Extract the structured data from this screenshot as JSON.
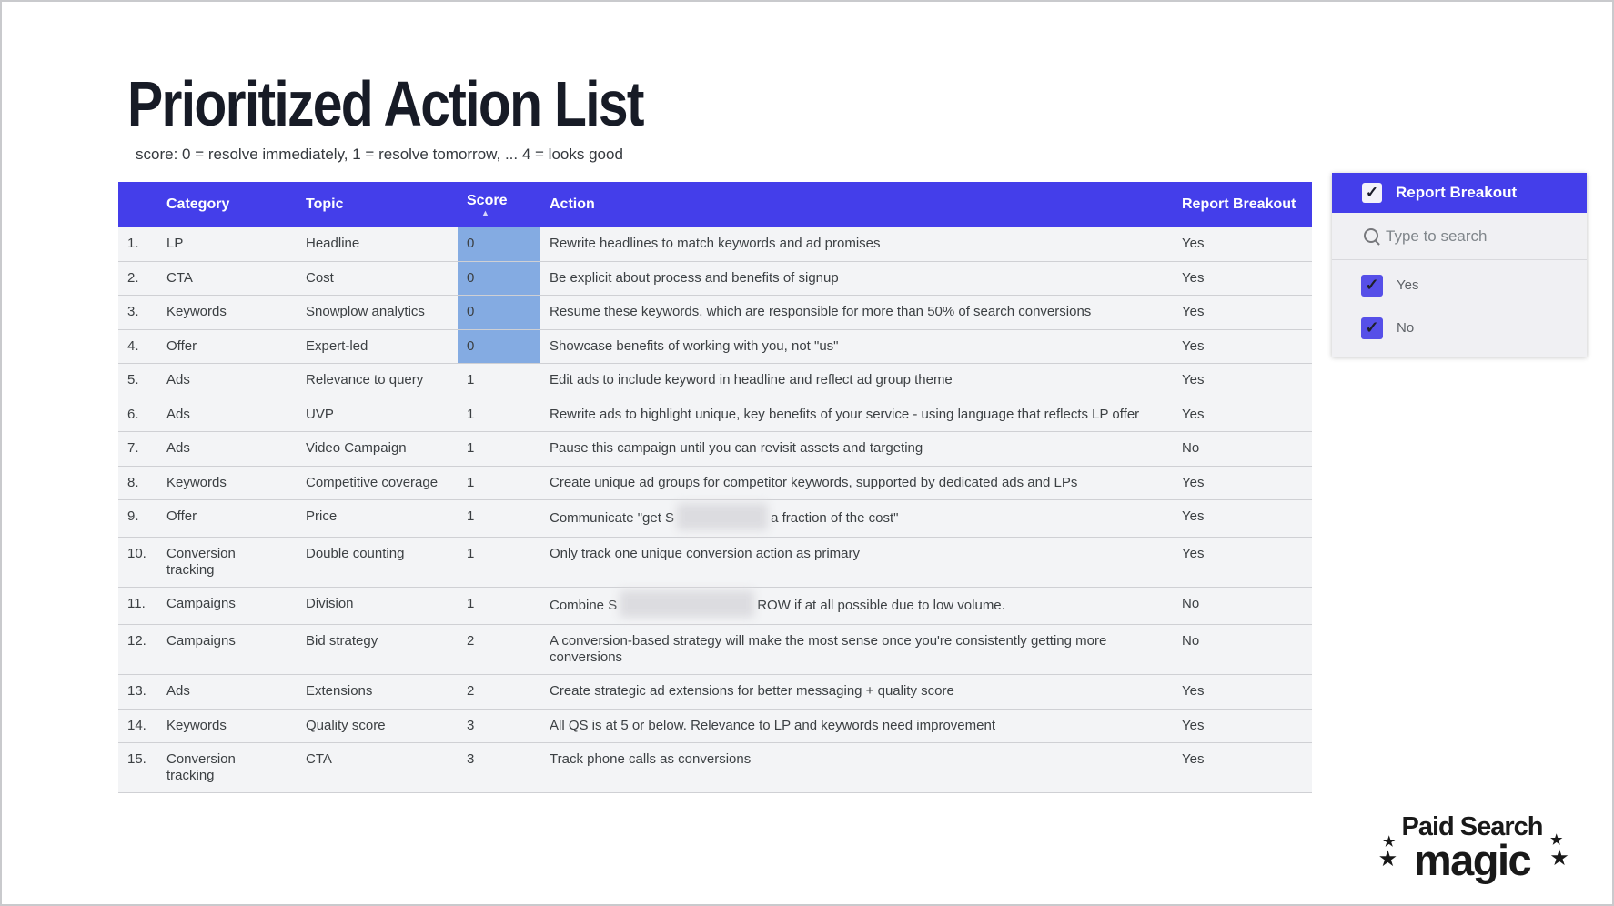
{
  "page": {
    "title": "Prioritized Action List",
    "subtitle": "score: 0 = resolve immediately, 1 = resolve tomorrow, ... 4 = looks good"
  },
  "colors": {
    "accent_blue": "#443eea",
    "score_highlight_blue": "#84abe2",
    "checkbox_blue": "#564fe8",
    "table_background": "#f3f4f6",
    "text_dark": "#3c4043"
  },
  "icons": {
    "sort_asc": "▲",
    "checkmark": "✓",
    "star": "★",
    "search": "magnifier"
  },
  "table": {
    "columns": [
      "Category",
      "Topic",
      "Score",
      "Action",
      "Report Breakout"
    ],
    "sorted_by": "Score",
    "sort_direction": "ascending",
    "rows": [
      {
        "num": "1.",
        "category": "LP",
        "topic": "Headline",
        "score": "0",
        "highlight": true,
        "action": "Rewrite headlines to match keywords and ad promises",
        "breakout": "Yes"
      },
      {
        "num": "2.",
        "category": "CTA",
        "topic": "Cost",
        "score": "0",
        "highlight": true,
        "action": "Be explicit about process and benefits of signup",
        "breakout": "Yes"
      },
      {
        "num": "3.",
        "category": "Keywords",
        "topic": "Snowplow analytics",
        "score": "0",
        "highlight": true,
        "action": "Resume these keywords, which are responsible for more than 50% of search conversions",
        "breakout": "Yes"
      },
      {
        "num": "4.",
        "category": "Offer",
        "topic": "Expert-led",
        "score": "0",
        "highlight": true,
        "action": "Showcase benefits of working with you, not \"us\"",
        "breakout": "Yes"
      },
      {
        "num": "5.",
        "category": "Ads",
        "topic": "Relevance to query",
        "score": "1",
        "action": "Edit ads to include keyword in headline and reflect ad group theme",
        "breakout": "Yes"
      },
      {
        "num": "6.",
        "category": "Ads",
        "topic": "UVP",
        "score": "1",
        "action": "Rewrite ads to highlight unique, key benefits of your service - using language that reflects LP offer",
        "breakout": "Yes"
      },
      {
        "num": "7.",
        "category": "Ads",
        "topic": "Video Campaign",
        "score": "1",
        "action": "Pause this campaign until you can revisit assets and targeting",
        "breakout": "No"
      },
      {
        "num": "8.",
        "category": "Keywords",
        "topic": "Competitive coverage",
        "score": "1",
        "action": "Create unique ad groups for competitor keywords, supported by dedicated ads and LPs",
        "breakout": "Yes"
      },
      {
        "num": "9.",
        "category": "Offer",
        "topic": "Price",
        "score": "1",
        "redacted": true,
        "action_pre": "Communicate \"get S",
        "blur_width": 100,
        "action_post": "a fraction of the cost\"",
        "breakout": "Yes"
      },
      {
        "num": "10.",
        "category": "Conversion tracking",
        "topic": "Double counting",
        "score": "1",
        "action": "Only track one unique conversion action as primary",
        "breakout": "Yes"
      },
      {
        "num": "11.",
        "category": "Campaigns",
        "topic": "Division",
        "score": "1",
        "redacted": true,
        "action_pre": "Combine S",
        "blur_width": 148,
        "action_post": "ROW if at all possible due to low volume.",
        "breakout": "No"
      },
      {
        "num": "12.",
        "category": "Campaigns",
        "topic": "Bid strategy",
        "score": "2",
        "action": "A conversion-based strategy will make the most sense once you're consistently getting more conversions",
        "breakout": "No"
      },
      {
        "num": "13.",
        "category": "Ads",
        "topic": "Extensions",
        "score": "2",
        "action": "Create strategic ad extensions for better messaging + quality score",
        "breakout": "Yes"
      },
      {
        "num": "14.",
        "category": "Keywords",
        "topic": "Quality score",
        "score": "3",
        "action": "All QS is at 5 or below. Relevance to LP and keywords need improvement",
        "breakout": "Yes"
      },
      {
        "num": "15.",
        "category": "Conversion tracking",
        "topic": "CTA",
        "score": "3",
        "action": "Track phone calls as conversions",
        "breakout": "Yes"
      }
    ]
  },
  "filter": {
    "title": "Report Breakout",
    "header_checked": true,
    "search_placeholder": "Type to search",
    "options": [
      {
        "label": "Yes",
        "checked": true
      },
      {
        "label": "No",
        "checked": true
      }
    ]
  },
  "logo": {
    "line1": "Paid Search",
    "line2": "magic"
  }
}
